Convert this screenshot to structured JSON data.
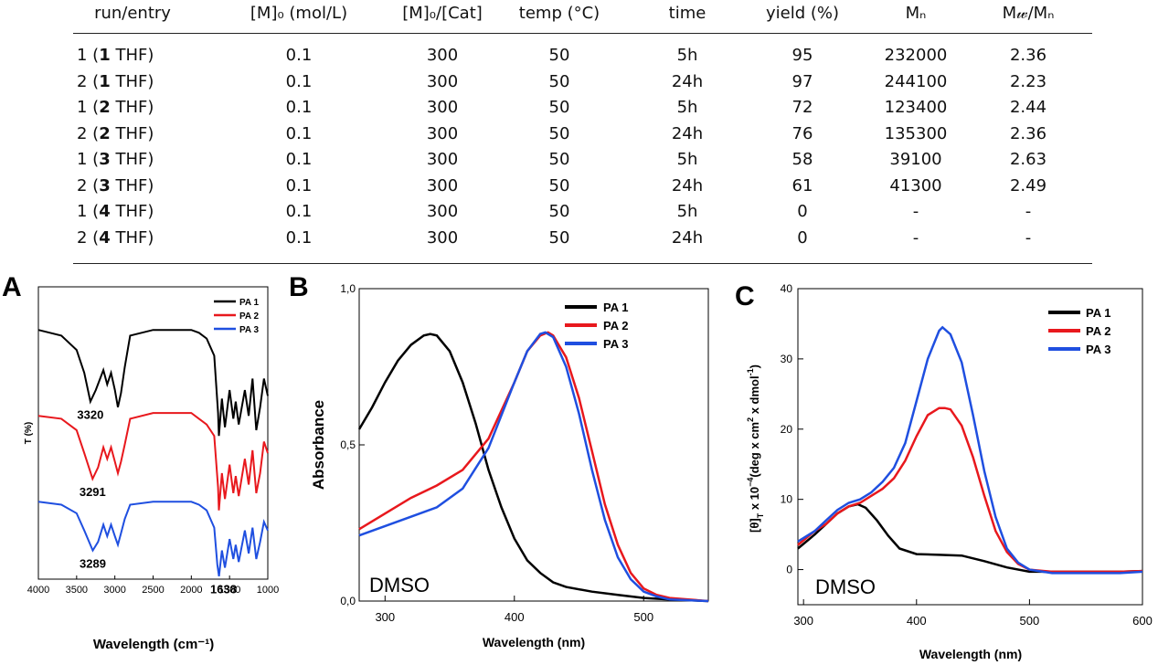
{
  "table": {
    "headers": [
      "run/entry",
      "[M]₀ (mol/L)",
      "[M]₀/[Cat]",
      "temp (°C)",
      "time",
      "yield (%)",
      "Mₙ",
      "M𝓌/Mₙ"
    ],
    "rows": [
      {
        "run": "1",
        "cat": "1",
        "solvent": "THF",
        "conc": "0.1",
        "ratio": "300",
        "temp": "50",
        "time": "5h",
        "yield": "95",
        "mn": "232000",
        "pdi": "2.36"
      },
      {
        "run": "2",
        "cat": "1",
        "solvent": "THF",
        "conc": "0.1",
        "ratio": "300",
        "temp": "50",
        "time": "24h",
        "yield": "97",
        "mn": "244100",
        "pdi": "2.23"
      },
      {
        "run": "1",
        "cat": "2",
        "solvent": "THF",
        "conc": "0.1",
        "ratio": "300",
        "temp": "50",
        "time": "5h",
        "yield": "72",
        "mn": "123400",
        "pdi": "2.44"
      },
      {
        "run": "2",
        "cat": "2",
        "solvent": "THF",
        "conc": "0.1",
        "ratio": "300",
        "temp": "50",
        "time": "24h",
        "yield": "76",
        "mn": "135300",
        "pdi": "2.36"
      },
      {
        "run": "1",
        "cat": "3",
        "solvent": "THF",
        "conc": "0.1",
        "ratio": "300",
        "temp": "50",
        "time": "5h",
        "yield": "58",
        "mn": "39100",
        "pdi": "2.63"
      },
      {
        "run": "2",
        "cat": "3",
        "solvent": "THF",
        "conc": "0.1",
        "ratio": "300",
        "temp": "50",
        "time": "24h",
        "yield": "61",
        "mn": "41300",
        "pdi": "2.49"
      },
      {
        "run": "1",
        "cat": "4",
        "solvent": "THF",
        "conc": "0.1",
        "ratio": "300",
        "temp": "50",
        "time": "5h",
        "yield": "0",
        "mn": "-",
        "pdi": "-"
      },
      {
        "run": "2",
        "cat": "4",
        "solvent": "THF",
        "conc": "0.1",
        "ratio": "300",
        "temp": "50",
        "time": "24h",
        "yield": "0",
        "mn": "-",
        "pdi": "-"
      }
    ]
  },
  "colors": {
    "PA 1": "#000000",
    "PA 2": "#e8181d",
    "PA 3": "#1f4fe0"
  },
  "chart_data": [
    {
      "id": "A",
      "panel_label": "A",
      "type": "line",
      "xlabel": "Wavelength (cm⁻¹)",
      "ylabel": "T (%)",
      "xlim": [
        4000,
        1000
      ],
      "x_ticks": [
        4000,
        3500,
        3000,
        2500,
        2000,
        1500,
        1000
      ],
      "y_ticks": [],
      "legend_position": "top-right",
      "series": [
        {
          "name": "PA 1",
          "color": "#000000",
          "x": [
            4000,
            3700,
            3500,
            3400,
            3320,
            3250,
            3150,
            3100,
            3050,
            3000,
            2960,
            2920,
            2870,
            2800,
            2500,
            2000,
            1900,
            1800,
            1700,
            1650,
            1640,
            1600,
            1560,
            1500,
            1450,
            1420,
            1380,
            1300,
            1250,
            1200,
            1150,
            1100,
            1050,
            1000
          ],
          "y": [
            0.87,
            0.85,
            0.8,
            0.72,
            0.62,
            0.66,
            0.73,
            0.68,
            0.72,
            0.66,
            0.6,
            0.65,
            0.74,
            0.85,
            0.87,
            0.87,
            0.86,
            0.84,
            0.78,
            0.58,
            0.5,
            0.63,
            0.53,
            0.66,
            0.56,
            0.62,
            0.54,
            0.66,
            0.57,
            0.7,
            0.52,
            0.6,
            0.7,
            0.64
          ]
        },
        {
          "name": "PA 2",
          "color": "#e8181d",
          "x": [
            4000,
            3700,
            3500,
            3400,
            3291,
            3220,
            3150,
            3100,
            3050,
            3000,
            2960,
            2920,
            2870,
            2800,
            2500,
            2000,
            1900,
            1800,
            1700,
            1650,
            1640,
            1600,
            1560,
            1500,
            1450,
            1420,
            1380,
            1300,
            1250,
            1200,
            1150,
            1100,
            1050,
            1000
          ],
          "y": [
            0.57,
            0.56,
            0.52,
            0.44,
            0.35,
            0.39,
            0.46,
            0.42,
            0.46,
            0.41,
            0.37,
            0.41,
            0.47,
            0.56,
            0.58,
            0.58,
            0.56,
            0.54,
            0.5,
            0.32,
            0.24,
            0.37,
            0.28,
            0.4,
            0.3,
            0.36,
            0.29,
            0.42,
            0.33,
            0.45,
            0.3,
            0.37,
            0.48,
            0.44
          ]
        },
        {
          "name": "PA 3",
          "color": "#1f4fe0",
          "x": [
            4000,
            3700,
            3500,
            3400,
            3289,
            3220,
            3150,
            3100,
            3050,
            3000,
            2960,
            2920,
            2870,
            2800,
            2500,
            2000,
            1900,
            1800,
            1700,
            1660,
            1638,
            1600,
            1560,
            1500,
            1450,
            1420,
            1380,
            1300,
            1250,
            1200,
            1150,
            1100,
            1050,
            1000
          ],
          "y": [
            0.27,
            0.26,
            0.23,
            0.17,
            0.1,
            0.13,
            0.19,
            0.15,
            0.19,
            0.15,
            0.12,
            0.16,
            0.21,
            0.26,
            0.27,
            0.27,
            0.26,
            0.24,
            0.18,
            0.05,
            0.01,
            0.1,
            0.04,
            0.14,
            0.07,
            0.12,
            0.06,
            0.17,
            0.09,
            0.18,
            0.07,
            0.13,
            0.2,
            0.17
          ]
        }
      ],
      "annotations": [
        {
          "text": "3320",
          "x": 3320,
          "y": 0.56
        },
        {
          "text": "3291",
          "x": 3291,
          "y": 0.29
        },
        {
          "text": "3289",
          "x": 3289,
          "y": 0.04
        },
        {
          "text": "1638",
          "x": 1580,
          "y": -0.05
        }
      ]
    },
    {
      "id": "B",
      "panel_label": "B",
      "type": "line",
      "xlabel": "Wavelength (nm)",
      "ylabel": "Absorbance",
      "xlim": [
        280,
        550
      ],
      "ylim": [
        0,
        1
      ],
      "x_ticks": [
        300,
        400,
        500
      ],
      "y_ticks": [
        0,
        0.5,
        1
      ],
      "y_tick_labels": [
        "0,0",
        "0,5",
        "1,0"
      ],
      "legend_position": "top-right",
      "annotation": "DMSO",
      "series": [
        {
          "name": "PA 1",
          "color": "#000000",
          "x": [
            280,
            290,
            300,
            310,
            320,
            330,
            335,
            340,
            350,
            360,
            370,
            380,
            390,
            400,
            410,
            420,
            430,
            440,
            460,
            480,
            500,
            520,
            550
          ],
          "y": [
            0.55,
            0.62,
            0.7,
            0.77,
            0.82,
            0.85,
            0.855,
            0.85,
            0.8,
            0.7,
            0.57,
            0.42,
            0.3,
            0.2,
            0.13,
            0.09,
            0.06,
            0.045,
            0.03,
            0.02,
            0.01,
            0.005,
            0.0
          ]
        },
        {
          "name": "PA 2",
          "color": "#e8181d",
          "x": [
            280,
            300,
            320,
            340,
            360,
            380,
            400,
            410,
            420,
            426,
            430,
            440,
            450,
            460,
            470,
            480,
            490,
            500,
            510,
            520,
            550
          ],
          "y": [
            0.23,
            0.28,
            0.33,
            0.37,
            0.42,
            0.52,
            0.7,
            0.8,
            0.85,
            0.86,
            0.85,
            0.78,
            0.65,
            0.48,
            0.31,
            0.18,
            0.09,
            0.04,
            0.02,
            0.01,
            0.0
          ]
        },
        {
          "name": "PA 3",
          "color": "#1f4fe0",
          "x": [
            280,
            300,
            320,
            340,
            360,
            380,
            400,
            410,
            420,
            424,
            430,
            440,
            450,
            460,
            470,
            480,
            490,
            500,
            510,
            520,
            550
          ],
          "y": [
            0.21,
            0.24,
            0.27,
            0.3,
            0.36,
            0.49,
            0.7,
            0.8,
            0.855,
            0.86,
            0.845,
            0.75,
            0.6,
            0.42,
            0.26,
            0.14,
            0.07,
            0.03,
            0.015,
            0.005,
            0.0
          ]
        }
      ]
    },
    {
      "id": "C",
      "panel_label": "C",
      "type": "line",
      "xlabel": "Wavelength (nm)",
      "ylabel": "[θ]T x 10⁻⁴(deg x cm² x dmol⁻¹)",
      "ylabel_parts": [
        "[θ]",
        "T",
        " x 10",
        "−4",
        "(deg x cm",
        "2",
        " x dmol",
        "-1",
        ")"
      ],
      "xlim": [
        295,
        600
      ],
      "ylim": [
        -5,
        40
      ],
      "x_ticks": [
        300,
        400,
        500,
        600
      ],
      "y_ticks": [
        0,
        10,
        20,
        30,
        40
      ],
      "legend_position": "top-right",
      "annotation": "DMSO",
      "series": [
        {
          "name": "PA 1",
          "color": "#000000",
          "x": [
            295,
            310,
            320,
            330,
            340,
            348,
            355,
            365,
            375,
            385,
            400,
            420,
            440,
            460,
            480,
            500,
            520,
            540,
            560,
            580,
            600
          ],
          "y": [
            3,
            5,
            6.5,
            8,
            9,
            9.3,
            8.8,
            7,
            4.8,
            3,
            2.2,
            2.1,
            2,
            1.2,
            0.3,
            -0.3,
            -0.3,
            -0.3,
            -0.3,
            -0.3,
            -0.2
          ]
        },
        {
          "name": "PA 2",
          "color": "#e8181d",
          "x": [
            295,
            310,
            320,
            330,
            340,
            350,
            360,
            370,
            380,
            390,
            400,
            410,
            420,
            425,
            430,
            440,
            450,
            460,
            470,
            480,
            490,
            500,
            520,
            540,
            560,
            580,
            600
          ],
          "y": [
            3.5,
            5.5,
            6.5,
            8,
            9,
            9.5,
            10.5,
            11.5,
            13,
            15.5,
            19,
            22,
            23,
            23,
            22.8,
            20.5,
            16,
            10.5,
            5.5,
            2.5,
            0.8,
            0,
            -0.3,
            -0.3,
            -0.3,
            -0.3,
            -0.2
          ]
        },
        {
          "name": "PA 3",
          "color": "#1f4fe0",
          "x": [
            295,
            310,
            320,
            330,
            340,
            350,
            360,
            370,
            380,
            390,
            400,
            410,
            420,
            423,
            430,
            440,
            450,
            460,
            470,
            480,
            490,
            500,
            520,
            540,
            560,
            580,
            600
          ],
          "y": [
            4,
            5.5,
            7,
            8.5,
            9.5,
            10,
            11,
            12.5,
            14.5,
            18,
            24,
            30,
            34,
            34.5,
            33.5,
            29.5,
            22,
            14,
            7.5,
            3,
            1,
            0,
            -0.5,
            -0.5,
            -0.5,
            -0.5,
            -0.3
          ]
        }
      ]
    }
  ]
}
